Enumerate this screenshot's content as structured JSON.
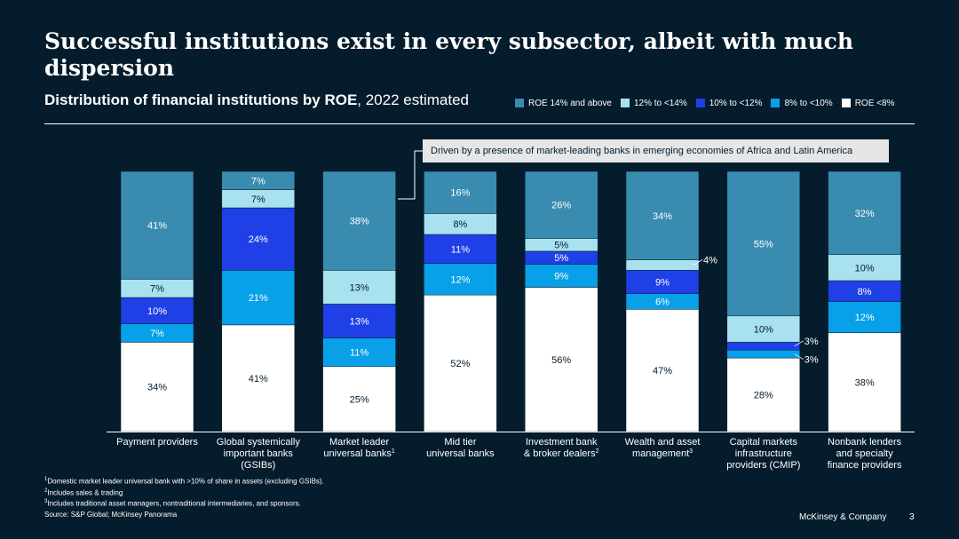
{
  "title": "Successful institutions exist in every subsector, albeit with much dispersion",
  "subtitle": {
    "bold": "Distribution of financial institutions by ROE",
    "rest": ", 2022 estimated"
  },
  "callout": "Driven by a presence of market-leading banks in emerging economies of Africa and Latin America",
  "footnotes": [
    "Domestic market leader universal bank with >10% of share in assets (excluding GSIBs).",
    "Includes sales & trading",
    "Includes traditional asset managers, nontraditional intermediaries, and sponsors."
  ],
  "source": "Source: S&P Global; McKinsey Panorama",
  "brand": "McKinsey & Company",
  "page_number": "3",
  "colors": {
    "background": "#051c2c",
    "roe14": "#3a8bb0",
    "roe12_14": "#a8e2ee",
    "roe10_12": "#1f40e6",
    "roe8_10": "#08a0e8",
    "roe_lt8": "#ffffff"
  },
  "chart_data": {
    "type": "bar",
    "stacked": true,
    "normalized_to": 100,
    "title": "Distribution of financial institutions by ROE, 2022 estimated",
    "xlabel": "",
    "ylabel": "",
    "ylim": [
      0,
      100
    ],
    "legend_position": "top-right",
    "categories": [
      {
        "lines": [
          "Payment providers"
        ],
        "sup": ""
      },
      {
        "lines": [
          "Global systemically",
          "important banks",
          "(GSIBs)"
        ],
        "sup": ""
      },
      {
        "lines": [
          "Market leader",
          "universal banks"
        ],
        "sup": "1"
      },
      {
        "lines": [
          "Mid tier",
          "universal banks"
        ],
        "sup": ""
      },
      {
        "lines": [
          "Investment bank",
          "& broker dealers"
        ],
        "sup": "2"
      },
      {
        "lines": [
          "Wealth and asset",
          "management"
        ],
        "sup": "3"
      },
      {
        "lines": [
          "Capital markets",
          "infrastructure",
          "providers (CMIP)"
        ],
        "sup": ""
      },
      {
        "lines": [
          "Nonbank lenders",
          "and specialty",
          "finance providers"
        ],
        "sup": ""
      }
    ],
    "series": [
      {
        "name": "ROE <8%",
        "color": "#ffffff",
        "text_color": "#051c2c",
        "values": [
          34,
          41,
          25,
          52,
          56,
          47,
          28,
          38
        ]
      },
      {
        "name": "8% to <10%",
        "color": "#08a0e8",
        "text_color": "#ffffff",
        "values": [
          7,
          21,
          11,
          12,
          9,
          6,
          3,
          12
        ]
      },
      {
        "name": "10% to <12%",
        "color": "#1f40e6",
        "text_color": "#ffffff",
        "values": [
          10,
          24,
          13,
          11,
          5,
          9,
          3,
          8
        ]
      },
      {
        "name": "12% to <14%",
        "color": "#a8e2ee",
        "text_color": "#051c2c",
        "values": [
          7,
          7,
          13,
          8,
          5,
          4,
          10,
          10
        ]
      },
      {
        "name": "ROE 14% and above",
        "color": "#3a8bb0",
        "text_color": "#ffffff",
        "values": [
          41,
          7,
          38,
          16,
          26,
          34,
          55,
          32
        ]
      }
    ]
  }
}
